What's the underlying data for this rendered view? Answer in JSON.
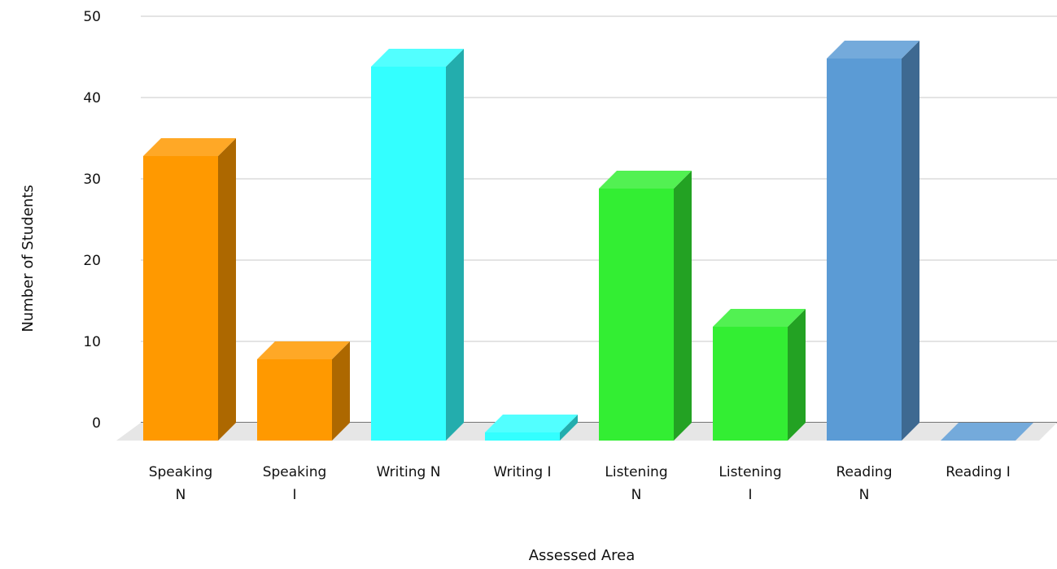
{
  "chart_data": {
    "type": "bar",
    "title": "",
    "xlabel": "Assessed Area",
    "ylabel": "Number of Students",
    "categories": [
      [
        "Speaking",
        "N"
      ],
      [
        "Speaking",
        "I"
      ],
      [
        "Writing N"
      ],
      [
        "Writing I"
      ],
      [
        "Listening",
        "N"
      ],
      [
        "Listening",
        "I"
      ],
      [
        "Reading",
        "N"
      ],
      [
        "Reading I"
      ]
    ],
    "values": [
      35,
      10,
      46,
      1,
      31,
      14,
      47,
      0
    ],
    "bar_colors": [
      "#ff9900",
      "#ff9900",
      "#33ffff",
      "#33ffff",
      "#33ee33",
      "#33ee33",
      "#5b9bd5",
      "#5b9bd5"
    ],
    "ylim": [
      0,
      50
    ],
    "yticks": [
      0,
      10,
      20,
      30,
      40,
      50
    ],
    "grid": true,
    "legend": "none",
    "style": "3d"
  }
}
